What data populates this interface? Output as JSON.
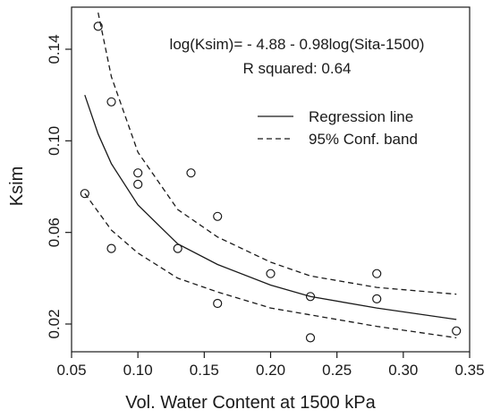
{
  "chart_data": {
    "type": "scatter",
    "xlabel": "Vol. Water Content at 1500 kPa",
    "ylabel": "Ksim",
    "xlim": [
      0.05,
      0.35
    ],
    "ylim": [
      0.01,
      0.155
    ],
    "x_ticks": [
      0.05,
      0.1,
      0.15,
      0.2,
      0.25,
      0.3,
      0.35
    ],
    "x_tick_labels": [
      "0.05",
      "0.10",
      "0.15",
      "0.20",
      "0.25",
      "0.30",
      "0.35"
    ],
    "y_ticks": [
      0.02,
      0.06,
      0.1,
      0.14
    ],
    "y_tick_labels": [
      "0.02",
      "0.06",
      "0.10",
      "0.14"
    ],
    "grid": false,
    "annotations": [
      "log(Ksim)= - 4.88 - 0.98log(Sita-1500)",
      "R squared: 0.64"
    ],
    "legend": {
      "position": "top-right",
      "entries": [
        {
          "label": "Regression line",
          "style": "solid"
        },
        {
          "label": "95% Conf. band",
          "style": "dashed"
        }
      ]
    },
    "points": [
      {
        "x": 0.06,
        "y": 0.077
      },
      {
        "x": 0.07,
        "y": 0.15
      },
      {
        "x": 0.08,
        "y": 0.117
      },
      {
        "x": 0.08,
        "y": 0.053
      },
      {
        "x": 0.1,
        "y": 0.086
      },
      {
        "x": 0.1,
        "y": 0.081
      },
      {
        "x": 0.13,
        "y": 0.053
      },
      {
        "x": 0.14,
        "y": 0.086
      },
      {
        "x": 0.16,
        "y": 0.067
      },
      {
        "x": 0.16,
        "y": 0.029
      },
      {
        "x": 0.2,
        "y": 0.042
      },
      {
        "x": 0.23,
        "y": 0.032
      },
      {
        "x": 0.23,
        "y": 0.014
      },
      {
        "x": 0.28,
        "y": 0.042
      },
      {
        "x": 0.28,
        "y": 0.031
      },
      {
        "x": 0.34,
        "y": 0.017
      }
    ],
    "series": [
      {
        "style": "solid",
        "x": [
          0.06,
          0.07,
          0.08,
          0.1,
          0.13,
          0.16,
          0.2,
          0.23,
          0.28,
          0.34
        ],
        "y": [
          0.12,
          0.103,
          0.09,
          0.072,
          0.055,
          0.046,
          0.037,
          0.032,
          0.027,
          0.022
        ]
      },
      {
        "style": "dashed",
        "x": [
          0.07,
          0.08,
          0.1,
          0.13,
          0.16,
          0.2,
          0.23,
          0.28,
          0.34
        ],
        "y": [
          0.156,
          0.128,
          0.095,
          0.07,
          0.058,
          0.047,
          0.041,
          0.036,
          0.033
        ]
      },
      {
        "style": "dashed",
        "x": [
          0.06,
          0.07,
          0.08,
          0.1,
          0.13,
          0.16,
          0.2,
          0.23,
          0.28,
          0.34
        ],
        "y": [
          0.077,
          0.069,
          0.061,
          0.051,
          0.04,
          0.034,
          0.027,
          0.024,
          0.019,
          0.014
        ]
      }
    ]
  }
}
